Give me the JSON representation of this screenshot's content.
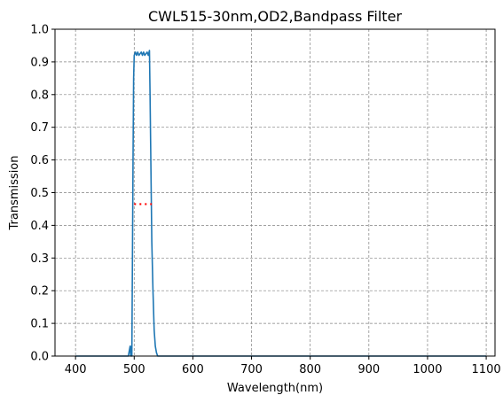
{
  "chart_data": {
    "type": "line",
    "title": "CWL515-30nm,OD2,Bandpass Filter",
    "xlabel": "Wavelength(nm)",
    "ylabel": "Transmission",
    "xlim": [
      365,
      1115
    ],
    "ylim": [
      0,
      1.0
    ],
    "x_ticks": [
      400,
      500,
      600,
      700,
      800,
      900,
      1000,
      1100
    ],
    "y_ticks": [
      0.0,
      0.1,
      0.2,
      0.3,
      0.4,
      0.5,
      0.6,
      0.7,
      0.8,
      0.9,
      1.0
    ],
    "grid": true,
    "legend": "none",
    "series": [
      {
        "color": "#1f77b4",
        "x": [
          400,
          450,
          490,
          493,
          494,
          495,
          496,
          497,
          498,
          499,
          500,
          502,
          504,
          506,
          508,
          510,
          512,
          514,
          516,
          518,
          520,
          522,
          524,
          526,
          527,
          528,
          529,
          530,
          532,
          534,
          536,
          538,
          540,
          542,
          545,
          550,
          600,
          700,
          800,
          900,
          1000,
          1100
        ],
        "y": [
          0.0,
          0.0,
          0.0,
          0.03,
          0.0,
          0.03,
          0.0,
          0.3,
          0.6,
          0.85,
          0.92,
          0.93,
          0.92,
          0.93,
          0.92,
          0.925,
          0.93,
          0.92,
          0.93,
          0.92,
          0.925,
          0.93,
          0.92,
          0.935,
          0.8,
          0.65,
          0.5,
          0.35,
          0.2,
          0.08,
          0.03,
          0.01,
          0.0,
          0.0,
          0.0,
          0.0,
          0.0,
          0.0,
          0.0,
          0.0,
          0.0,
          0.0
        ]
      }
    ],
    "annotations": [
      {
        "type": "dotted-line",
        "color": "#ff0000",
        "x": [
          500,
          530
        ],
        "y": [
          0.465,
          0.465
        ]
      }
    ]
  }
}
